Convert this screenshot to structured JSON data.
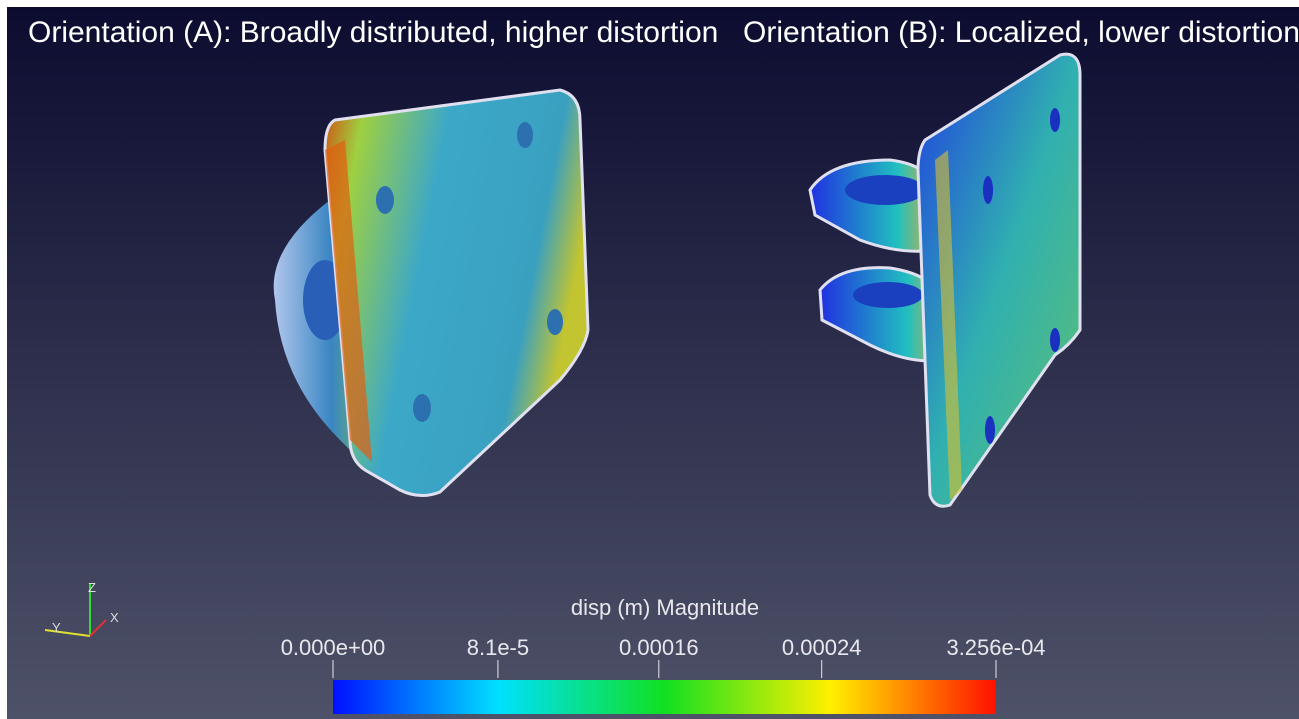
{
  "captions": [
    "Orientation (A): Broadly distributed, higher distortion",
    "Orientation (B): Localized, lower distortion"
  ],
  "axes_triad": {
    "z": "Z",
    "y": "Y",
    "x": "X"
  },
  "colorbar": {
    "title": "disp (m) Magnitude",
    "range": [
      0,
      0.0003256
    ],
    "ticks": [
      {
        "value": 0,
        "label": "0.000e+00"
      },
      {
        "value": 8.1e-05,
        "label": "8.1e-5"
      },
      0.00016,
      0.00024,
      {
        "value": 0.0003256,
        "label": "3.256e-04"
      }
    ]
  }
}
